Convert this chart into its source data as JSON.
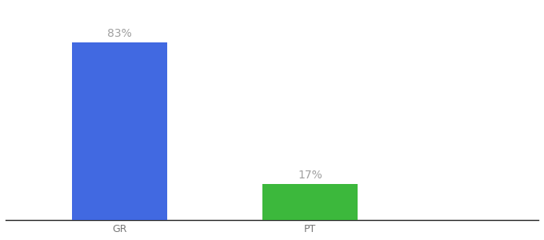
{
  "categories": [
    "GR",
    "PT"
  ],
  "values": [
    83,
    17
  ],
  "bar_colors": [
    "#4169e1",
    "#3cb83c"
  ],
  "label_texts": [
    "83%",
    "17%"
  ],
  "label_color": "#a0a0a0",
  "ylim": [
    0,
    100
  ],
  "background_color": "#ffffff",
  "tick_color": "#777777",
  "spine_color": "#222222",
  "bar_width": 0.5,
  "label_fontsize": 10,
  "tick_fontsize": 9,
  "x_positions": [
    1,
    2
  ],
  "xlim": [
    0.4,
    3.2
  ]
}
